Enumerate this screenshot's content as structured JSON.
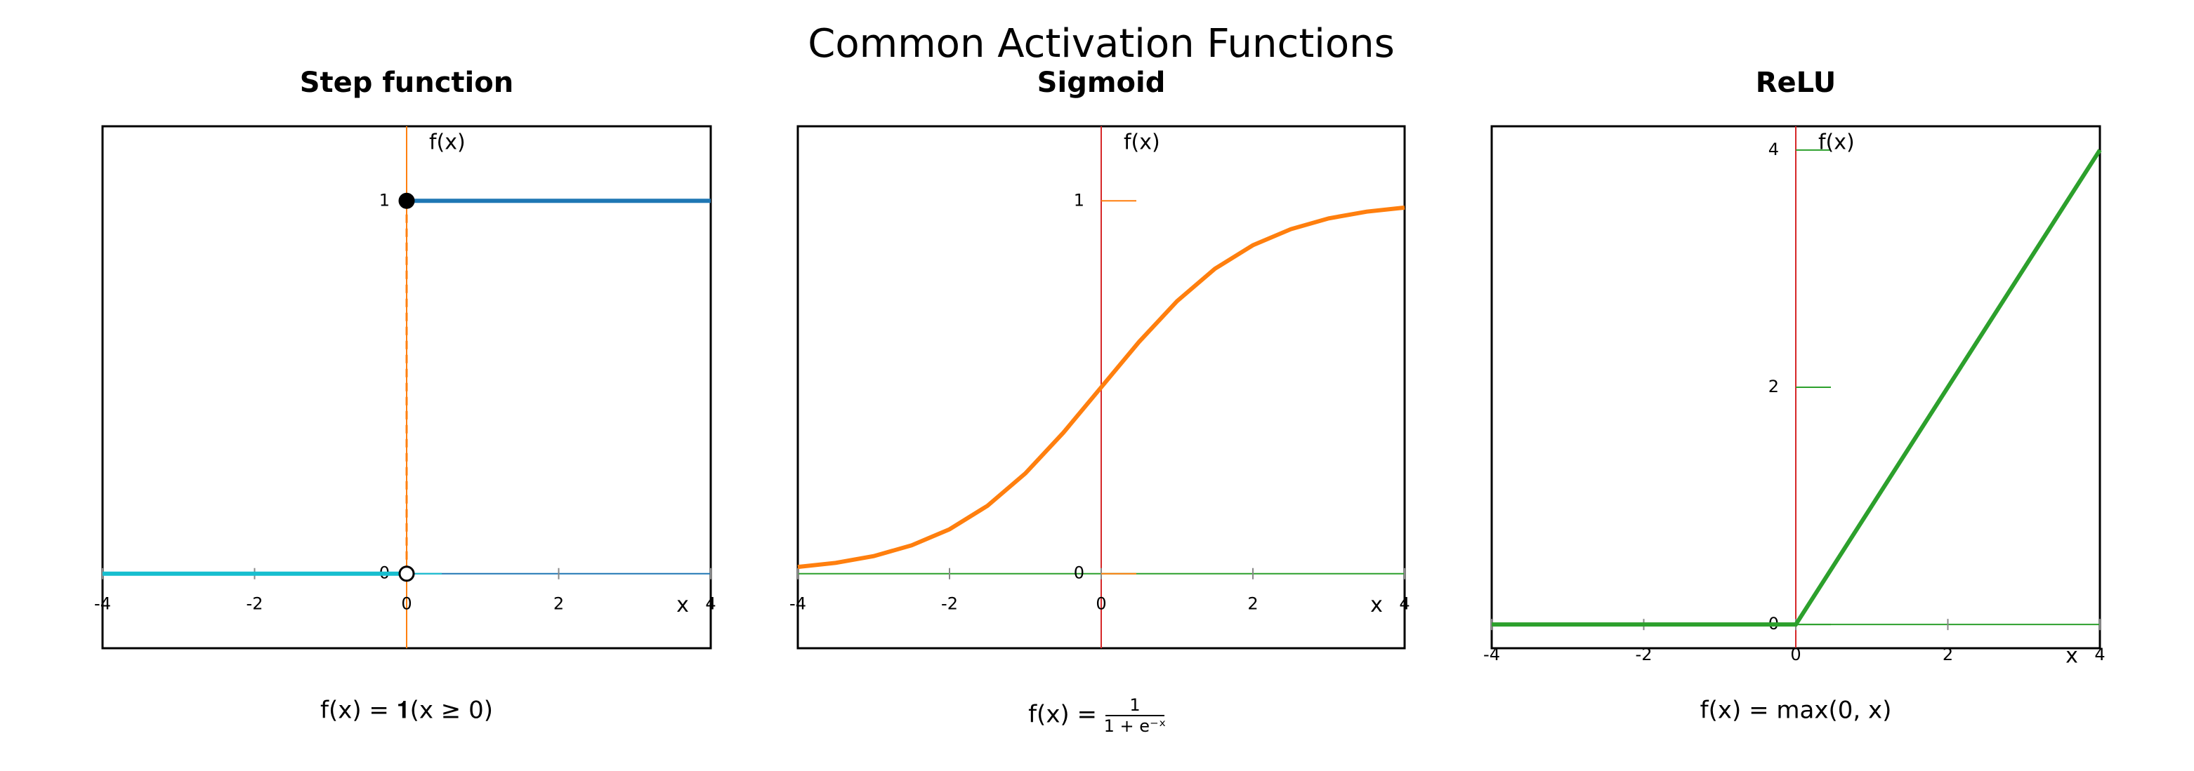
{
  "title": "Common Activation Functions",
  "chart_data": [
    {
      "type": "line",
      "title": "Step function",
      "xlabel": "x",
      "ylabel": "f(x)",
      "xlim": [
        -4,
        4
      ],
      "ylim": [
        -0.2,
        1.2
      ],
      "xticks": [
        -4,
        -2,
        0,
        2,
        4
      ],
      "yticks": [
        0,
        1
      ],
      "xaxis_color": "#1f77b4",
      "yaxis_color": "#ff7f0e",
      "series": [
        {
          "color": "#17becf",
          "x": [
            -4,
            0
          ],
          "values": [
            0,
            0
          ]
        },
        {
          "color": "#1f77b4",
          "x": [
            0,
            4
          ],
          "values": [
            1,
            1
          ]
        },
        {
          "color": "#ff7f0e",
          "x": [
            0,
            0
          ],
          "values": [
            0,
            1
          ],
          "dashed": true
        }
      ],
      "points": [
        {
          "x": 0,
          "y": 1,
          "filled": true
        },
        {
          "x": 0,
          "y": 0,
          "filled": false
        }
      ],
      "formula": "f(x) = 𝟏(x ≥ 0)"
    },
    {
      "type": "line",
      "title": "Sigmoid",
      "xlabel": "x",
      "ylabel": "f(x)",
      "xlim": [
        -4,
        4
      ],
      "ylim": [
        -0.2,
        1.2
      ],
      "xticks": [
        -4,
        -2,
        0,
        2,
        4
      ],
      "yticks": [
        0,
        1
      ],
      "xaxis_color": "#2ca02c",
      "yaxis_color": "#d62728",
      "series": [
        {
          "color": "#ff7f0e",
          "x": [
            -4,
            -3.5,
            -3,
            -2.5,
            -2,
            -1.5,
            -1,
            -0.5,
            0,
            0.5,
            1,
            1.5,
            2,
            2.5,
            3,
            3.5,
            4
          ],
          "values": [
            0.018,
            0.029,
            0.047,
            0.076,
            0.119,
            0.182,
            0.269,
            0.378,
            0.5,
            0.622,
            0.731,
            0.818,
            0.881,
            0.924,
            0.953,
            0.971,
            0.982
          ]
        }
      ],
      "formula": {
        "lhs": "f(x) =",
        "numerator": "1",
        "denominator": "1 + e⁻ˣ"
      }
    },
    {
      "type": "line",
      "title": "ReLU",
      "xlabel": "x",
      "ylabel": "f(x)",
      "xlim": [
        -4,
        4
      ],
      "ylim": [
        -0.2,
        4.2
      ],
      "xticks": [
        -4,
        -2,
        0,
        2,
        4
      ],
      "yticks": [
        0,
        2,
        4
      ],
      "xaxis_color": "#2ca02c",
      "yaxis_color": "#d62728",
      "series": [
        {
          "color": "#2ca02c",
          "x": [
            -4,
            0,
            4
          ],
          "values": [
            0,
            0,
            4
          ]
        }
      ],
      "formula": "f(x) = max(0, x)"
    }
  ]
}
